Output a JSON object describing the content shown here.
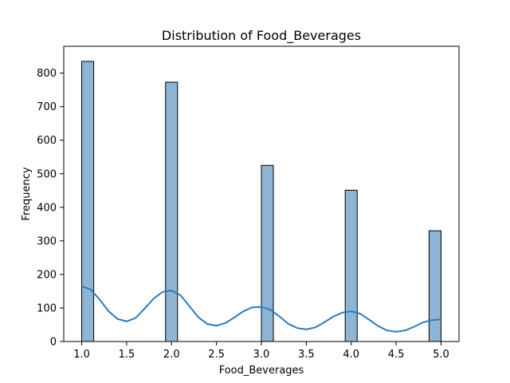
{
  "chart_data": {
    "type": "bar",
    "title": "Distribution of Food_Beverages",
    "xlabel": "Food_Beverages",
    "ylabel": "Frequency",
    "xlim": [
      0.8,
      5.2
    ],
    "ylim": [
      0,
      880
    ],
    "x_ticks": [
      1.0,
      1.5,
      2.0,
      2.5,
      3.0,
      3.5,
      4.0,
      4.5,
      5.0
    ],
    "x_tick_labels": [
      "1.0",
      "1.5",
      "2.0",
      "2.5",
      "3.0",
      "3.5",
      "4.0",
      "4.5",
      "5.0"
    ],
    "y_ticks": [
      0,
      100,
      200,
      300,
      400,
      500,
      600,
      700,
      800
    ],
    "y_tick_labels": [
      "0",
      "100",
      "200",
      "300",
      "400",
      "500",
      "600",
      "700",
      "800"
    ],
    "bins": [
      {
        "start": 1.0,
        "end": 1.1333,
        "value": 835
      },
      {
        "start": 1.9333,
        "end": 2.0667,
        "value": 773
      },
      {
        "start": 2.8667,
        "end": 3.0,
        "value": 0
      },
      {
        "start": 3.0,
        "end": 3.1333,
        "value": 525
      },
      {
        "start": 3.9333,
        "end": 4.0667,
        "value": 451
      },
      {
        "start": 4.8667,
        "end": 5.0,
        "value": 330
      }
    ],
    "kde": {
      "x": [
        1.0,
        1.1,
        1.2,
        1.3,
        1.4,
        1.5,
        1.6,
        1.7,
        1.8,
        1.9,
        2.0,
        2.1,
        2.2,
        2.3,
        2.4,
        2.5,
        2.6,
        2.7,
        2.8,
        2.9,
        3.0,
        3.1,
        3.2,
        3.3,
        3.4,
        3.5,
        3.6,
        3.7,
        3.8,
        3.9,
        4.0,
        4.1,
        4.2,
        4.3,
        4.4,
        4.5,
        4.6,
        4.7,
        4.8,
        4.9,
        5.0
      ],
      "y": [
        165,
        155,
        125,
        90,
        67,
        60,
        70,
        98,
        128,
        148,
        152,
        138,
        105,
        72,
        52,
        47,
        55,
        72,
        90,
        102,
        103,
        95,
        75,
        53,
        40,
        36,
        42,
        57,
        74,
        86,
        90,
        83,
        65,
        46,
        33,
        29,
        33,
        44,
        57,
        64,
        66
      ]
    },
    "bar_color": "#8db5d6",
    "bar_edge_color": "#000000",
    "line_color": "#2e7ab8",
    "grid": false,
    "legend": "none"
  }
}
